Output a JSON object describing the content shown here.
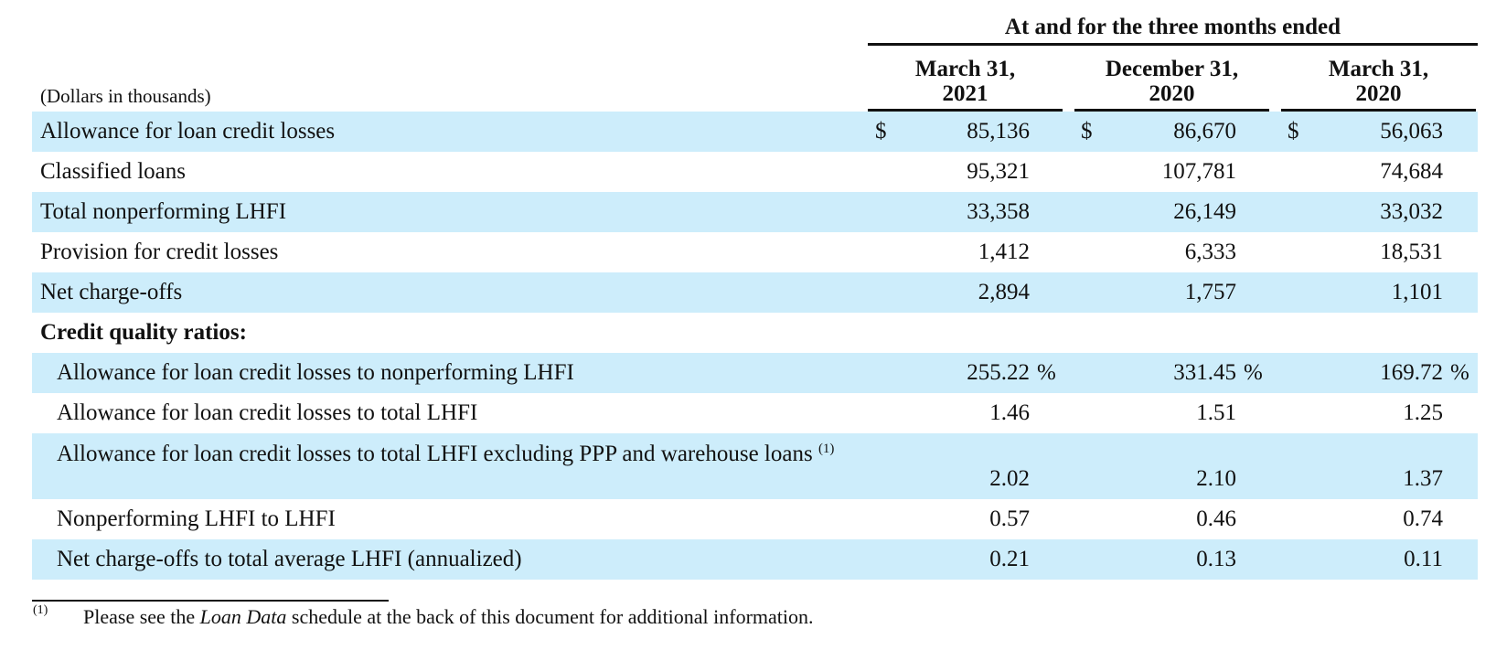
{
  "header": {
    "span_title": "At and for the three months ended",
    "units": "(Dollars in thousands)",
    "columns": [
      {
        "line1": "March 31,",
        "line2": "2021"
      },
      {
        "line1": "December 31,",
        "line2": "2020"
      },
      {
        "line1": "March 31,",
        "line2": "2020"
      }
    ]
  },
  "currency_symbol": "$",
  "percent_symbol": "%",
  "rows": [
    {
      "label": "Allowance for loan credit losses",
      "values": [
        "85,136",
        "86,670",
        "56,063"
      ]
    },
    {
      "label": "Classified loans",
      "values": [
        "95,321",
        "107,781",
        "74,684"
      ]
    },
    {
      "label": "Total nonperforming LHFI",
      "values": [
        "33,358",
        "26,149",
        "33,032"
      ]
    },
    {
      "label": "Provision for credit losses",
      "values": [
        "1,412",
        "6,333",
        "18,531"
      ]
    },
    {
      "label": "Net charge-offs",
      "values": [
        "2,894",
        "1,757",
        "1,101"
      ]
    },
    {
      "label": "Credit quality ratios:"
    },
    {
      "label": "Allowance for loan credit losses to nonperforming LHFI",
      "values": [
        "255.22",
        "331.45",
        "169.72"
      ]
    },
    {
      "label": "Allowance for loan credit losses to total LHFI",
      "values": [
        "1.46",
        "1.51",
        "1.25"
      ]
    },
    {
      "label": "Allowance for loan credit losses to total LHFI excluding PPP and warehouse loans",
      "footnote_ref": "(1)",
      "values": [
        "2.02",
        "2.10",
        "1.37"
      ]
    },
    {
      "label": "Nonperforming LHFI to LHFI",
      "values": [
        "0.57",
        "0.46",
        "0.74"
      ]
    },
    {
      "label": "Net charge-offs to total average LHFI (annualized)",
      "values": [
        "0.21",
        "0.13",
        "0.11"
      ]
    }
  ],
  "footnote": {
    "marker": "(1)",
    "text_before": "Please see the ",
    "text_italic": "Loan Data",
    "text_after": " schedule at the back of this document for additional information."
  }
}
